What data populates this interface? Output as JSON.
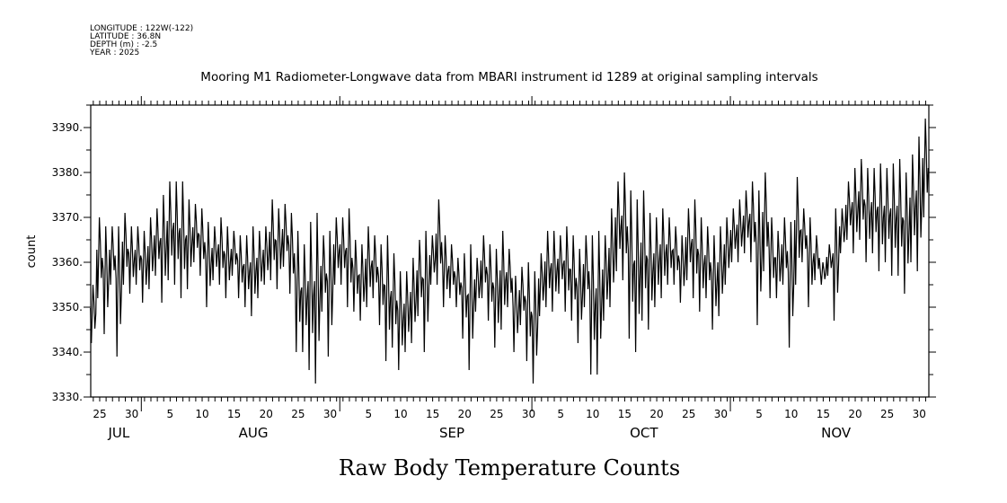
{
  "header": {
    "longitude": "LONGITUDE : 122W(-122)",
    "latitude": "LATITUDE : 36.8N",
    "depth": "DEPTH (m) : -2.5",
    "year": "YEAR : 2025"
  },
  "chart_data": {
    "type": "line",
    "title": "Mooring M1 Radiometer-Longwave data from MBARI instrument id 1289 at original sampling intervals",
    "bottom_title": "Raw Body Temperature Counts",
    "xlabel": "",
    "ylabel": "count",
    "ylim": [
      3330,
      3395
    ],
    "y_ticks": [
      3330,
      3340,
      3350,
      3360,
      3370,
      3380,
      3390
    ],
    "y_tick_labels": [
      "3330.",
      "3340.",
      "3350.",
      "3360.",
      "3370.",
      "3380.",
      "3390."
    ],
    "x_start_date": "2025-07-24",
    "x_range_days": [
      -0.4,
      130.5
    ],
    "x_day_labels": [
      {
        "day": 1,
        "label": "25"
      },
      {
        "day": 6,
        "label": "30"
      },
      {
        "day": 12,
        "label": "5"
      },
      {
        "day": 17,
        "label": "10"
      },
      {
        "day": 22,
        "label": "15"
      },
      {
        "day": 27,
        "label": "20"
      },
      {
        "day": 32,
        "label": "25"
      },
      {
        "day": 37,
        "label": "30"
      },
      {
        "day": 43,
        "label": "5"
      },
      {
        "day": 48,
        "label": "10"
      },
      {
        "day": 53,
        "label": "15"
      },
      {
        "day": 58,
        "label": "20"
      },
      {
        "day": 63,
        "label": "25"
      },
      {
        "day": 68,
        "label": "30"
      },
      {
        "day": 73,
        "label": "5"
      },
      {
        "day": 78,
        "label": "10"
      },
      {
        "day": 83,
        "label": "15"
      },
      {
        "day": 88,
        "label": "20"
      },
      {
        "day": 93,
        "label": "25"
      },
      {
        "day": 98,
        "label": "30"
      },
      {
        "day": 104,
        "label": "5"
      },
      {
        "day": 109,
        "label": "10"
      },
      {
        "day": 114,
        "label": "15"
      },
      {
        "day": 119,
        "label": "20"
      },
      {
        "day": 124,
        "label": "25"
      },
      {
        "day": 129,
        "label": "30"
      }
    ],
    "month_labels": [
      {
        "day": 4,
        "label": "JUL"
      },
      {
        "day": 25,
        "label": "AUG"
      },
      {
        "day": 56,
        "label": "SEP"
      },
      {
        "day": 86,
        "label": "OCT"
      },
      {
        "day": 116,
        "label": "NOV"
      }
    ],
    "month_boundaries": [
      8,
      39,
      69,
      100
    ],
    "series": [
      {
        "name": "count",
        "daily_max": [
          3355,
          3370,
          3368,
          3368,
          3368,
          3371,
          3368,
          3368,
          3367,
          3370,
          3372,
          3375,
          3378,
          3378,
          3378,
          3374,
          3373,
          3372,
          3369,
          3368,
          3370,
          3368,
          3367,
          3366,
          3366,
          3368,
          3367,
          3368,
          3374,
          3372,
          3373,
          3371,
          3367,
          3364,
          3369,
          3371,
          3366,
          3367,
          3370,
          3370,
          3372,
          3365,
          3364,
          3368,
          3366,
          3364,
          3366,
          3362,
          3358,
          3358,
          3361,
          3365,
          3367,
          3366,
          3374,
          3366,
          3364,
          3361,
          3362,
          3364,
          3361,
          3366,
          3364,
          3363,
          3367,
          3363,
          3357,
          3359,
          3360,
          3358,
          3362,
          3367,
          3367,
          3366,
          3368,
          3366,
          3363,
          3366,
          3366,
          3367,
          3366,
          3372,
          3378,
          3380,
          3376,
          3374,
          3376,
          3371,
          3370,
          3372,
          3370,
          3368,
          3366,
          3372,
          3374,
          3370,
          3368,
          3366,
          3368,
          3370,
          3372,
          3374,
          3376,
          3378,
          3376,
          3380,
          3370,
          3367,
          3370,
          3369,
          3379,
          3372,
          3370,
          3366,
          3360,
          3364,
          3372,
          3372,
          3378,
          3381,
          3383,
          3381,
          3381,
          3382,
          3381,
          3382,
          3383,
          3380,
          3384,
          3388,
          3392
        ],
        "daily_min": [
          3342,
          3352,
          3344,
          3355,
          3339,
          3355,
          3353,
          3355,
          3351,
          3354,
          3357,
          3351,
          3356,
          3355,
          3352,
          3354,
          3360,
          3357,
          3350,
          3356,
          3355,
          3352,
          3357,
          3352,
          3350,
          3348,
          3352,
          3355,
          3356,
          3354,
          3359,
          3353,
          3340,
          3340,
          3336,
          3333,
          3349,
          3339,
          3355,
          3355,
          3350,
          3349,
          3347,
          3350,
          3352,
          3346,
          3338,
          3341,
          3336,
          3340,
          3342,
          3348,
          3340,
          3355,
          3355,
          3350,
          3352,
          3350,
          3343,
          3336,
          3349,
          3352,
          3347,
          3341,
          3345,
          3350,
          3340,
          3346,
          3338,
          3333,
          3348,
          3350,
          3349,
          3353,
          3349,
          3347,
          3342,
          3350,
          3335,
          3335,
          3347,
          3350,
          3358,
          3356,
          3343,
          3340,
          3347,
          3345,
          3350,
          3352,
          3355,
          3355,
          3351,
          3356,
          3352,
          3349,
          3352,
          3345,
          3348,
          3355,
          3360,
          3360,
          3362,
          3360,
          3346,
          3358,
          3352,
          3352,
          3355,
          3341,
          3355,
          3360,
          3350,
          3356,
          3355,
          3357,
          3347,
          3362,
          3365,
          3362,
          3365,
          3360,
          3362,
          3358,
          3360,
          3357,
          3357,
          3353,
          3360,
          3358,
          3370
        ]
      }
    ]
  }
}
